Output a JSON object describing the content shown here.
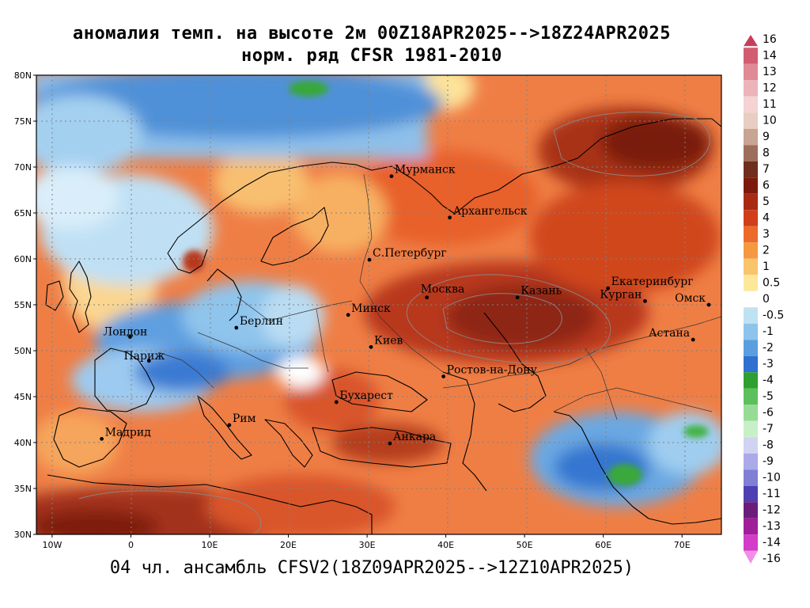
{
  "title_line1": "аномалия темп. на высоте 2м 00Z18APR2025-->18Z24APR2025",
  "title_line2": "норм. ряд CFSR 1981-2010",
  "subtitle": "04 чл. ансамбль CFSV2(18Z09APR2025-->12Z10APR2025)",
  "map": {
    "lon_range": [
      -12,
      75
    ],
    "lat_range": [
      30,
      80
    ],
    "lon_ticks": [
      {
        "value": -10,
        "label": "10W"
      },
      {
        "value": 0,
        "label": "0"
      },
      {
        "value": 10,
        "label": "10E"
      },
      {
        "value": 20,
        "label": "20E"
      },
      {
        "value": 30,
        "label": "30E"
      },
      {
        "value": 40,
        "label": "40E"
      },
      {
        "value": 50,
        "label": "50E"
      },
      {
        "value": 60,
        "label": "60E"
      },
      {
        "value": 70,
        "label": "70E"
      }
    ],
    "lat_ticks": [
      {
        "value": 30,
        "label": "30N"
      },
      {
        "value": 35,
        "label": "35N"
      },
      {
        "value": 40,
        "label": "40N"
      },
      {
        "value": 45,
        "label": "45N"
      },
      {
        "value": 50,
        "label": "50N"
      },
      {
        "value": 55,
        "label": "55N"
      },
      {
        "value": 60,
        "label": "60N"
      },
      {
        "value": 65,
        "label": "65N"
      },
      {
        "value": 70,
        "label": "70N"
      },
      {
        "value": 75,
        "label": "75N"
      },
      {
        "value": 80,
        "label": "80N"
      }
    ],
    "cities": [
      {
        "name": "Мурманск",
        "lon": 33.1,
        "lat": 69.0
      },
      {
        "name": "Архангельск",
        "lon": 40.5,
        "lat": 64.5
      },
      {
        "name": "С.Петербург",
        "lon": 30.3,
        "lat": 59.9
      },
      {
        "name": "Москва",
        "lon": 37.6,
        "lat": 55.8
      },
      {
        "name": "Казань",
        "lon": 49.1,
        "lat": 55.8
      },
      {
        "name": "Екатеринбург",
        "lon": 60.6,
        "lat": 56.8
      },
      {
        "name": "Курган",
        "lon": 65.3,
        "lat": 55.4
      },
      {
        "name": "Омск",
        "lon": 73.4,
        "lat": 55.0
      },
      {
        "name": "Астана",
        "lon": 71.4,
        "lat": 51.2
      },
      {
        "name": "Минск",
        "lon": 27.6,
        "lat": 53.9
      },
      {
        "name": "Киев",
        "lon": 30.5,
        "lat": 50.4
      },
      {
        "name": "Ростов-на-Дону",
        "lon": 39.7,
        "lat": 47.2
      },
      {
        "name": "Берлин",
        "lon": 13.4,
        "lat": 52.5
      },
      {
        "name": "Лондон",
        "lon": -0.1,
        "lat": 51.5
      },
      {
        "name": "Париж",
        "lon": 2.3,
        "lat": 48.9
      },
      {
        "name": "Бухарест",
        "lon": 26.1,
        "lat": 44.4
      },
      {
        "name": "Рим",
        "lon": 12.5,
        "lat": 41.9
      },
      {
        "name": "Мадрид",
        "lon": -3.7,
        "lat": 40.4
      },
      {
        "name": "Анкара",
        "lon": 32.9,
        "lat": 39.9
      }
    ]
  },
  "colorbar": {
    "levels": [
      "16",
      "14",
      "13",
      "12",
      "11",
      "10",
      "9",
      "8",
      "7",
      "6",
      "5",
      "4",
      "3",
      "2",
      "1",
      "0.5",
      "0",
      "-0.5",
      "-1",
      "-2",
      "-3",
      "-4",
      "-5",
      "-6",
      "-7",
      "-8",
      "-9",
      "-10",
      "-11",
      "-12",
      "-13",
      "-14",
      "-16"
    ],
    "colors": [
      "#c4405a",
      "#d25d70",
      "#e08a96",
      "#ecb3b9",
      "#f3d3d3",
      "#e8cdc3",
      "#c9a394",
      "#9e6e5c",
      "#6e2f1c",
      "#7d1a0c",
      "#a82a12",
      "#d03e1a",
      "#ec6a2c",
      "#f4993f",
      "#f8c46c",
      "#fde89a",
      "#ffffff",
      "#bfe2f2",
      "#8ec4ec",
      "#5b9ee0",
      "#2f70d0",
      "#2fa02f",
      "#5cc05c",
      "#96dc96",
      "#c8f0c8",
      "#d2d2f2",
      "#aaaae8",
      "#7f7fd6",
      "#4f3fb2",
      "#6c1d7a",
      "#a01e9a",
      "#d23cc8",
      "#f28ee6"
    ]
  }
}
